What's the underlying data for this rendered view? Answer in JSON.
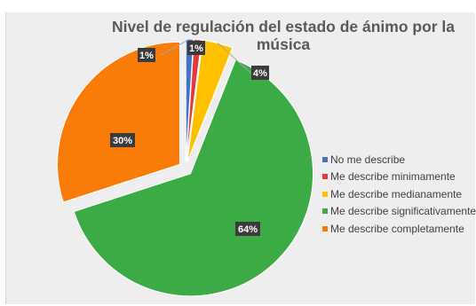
{
  "chart_data": {
    "type": "pie",
    "title": "Nivel de regulación del estado de ánimo por la música",
    "categories": [
      "No me describe",
      "Me describe minimamente",
      "Me describe medianamente",
      "Me describe significativamente",
      "Me describe completamente"
    ],
    "values": [
      1,
      1,
      4,
      64,
      30
    ],
    "data_labels": [
      "1%",
      "1%",
      "4%",
      "64%",
      "30%"
    ],
    "colors": [
      "#4472c4",
      "#e03b3b",
      "#ffc000",
      "#3cab46",
      "#f87c07"
    ],
    "exploded": true,
    "legend_position": "right"
  }
}
